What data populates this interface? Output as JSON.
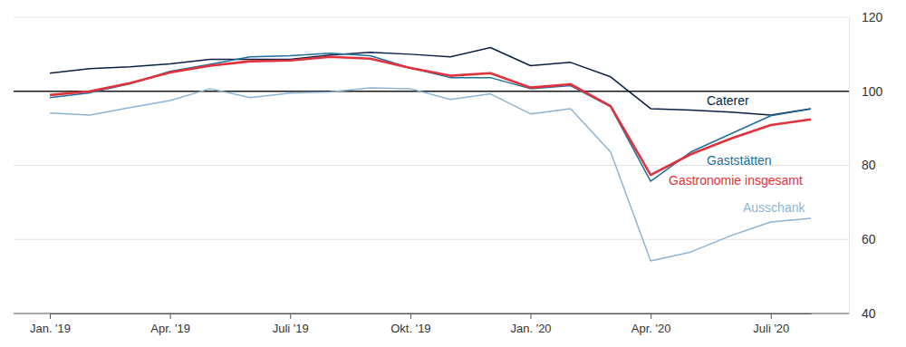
{
  "chart_data": {
    "type": "line",
    "categories": [
      "Jan. '19",
      null,
      null,
      "Apr. '19",
      null,
      null,
      "Juli '19",
      null,
      null,
      "Okt. '19",
      null,
      null,
      "Jan. '20",
      null,
      null,
      "Apr. '20",
      null,
      null,
      "Juli '20",
      null
    ],
    "series": [
      {
        "name": "Caterer",
        "color": "#0b1f45",
        "values": [
          104.9,
          106.1,
          106.6,
          107.4,
          108.6,
          108.6,
          108.6,
          109.8,
          110.5,
          110.0,
          109.3,
          111.8,
          106.9,
          107.8,
          103.9,
          95.3,
          94.9,
          94.4,
          93.6,
          95.3
        ]
      },
      {
        "name": "Gaststätten",
        "color": "#1f6f9a",
        "values": [
          98.3,
          99.6,
          102.0,
          105.4,
          107.3,
          109.3,
          109.6,
          110.3,
          109.6,
          106.3,
          103.7,
          103.7,
          100.7,
          101.5,
          95.8,
          75.7,
          83.6,
          88.5,
          93.4,
          95.2
        ]
      },
      {
        "name": "Gastronomie insgesamt",
        "color": "#e0323c",
        "values": [
          99.0,
          100.0,
          102.2,
          105.1,
          106.9,
          108.1,
          108.3,
          109.3,
          108.8,
          106.3,
          104.2,
          104.9,
          101.0,
          101.9,
          96.0,
          77.4,
          83.0,
          87.2,
          90.9,
          92.4
        ]
      },
      {
        "name": "Ausschank",
        "color": "#8db4d4",
        "values": [
          94.1,
          93.6,
          95.6,
          97.5,
          100.7,
          98.3,
          99.5,
          99.8,
          100.9,
          100.7,
          97.8,
          99.3,
          93.9,
          95.3,
          83.6,
          54.2,
          56.6,
          61.0,
          64.7,
          65.7
        ]
      }
    ],
    "reference": 100,
    "ylim": [
      40,
      120
    ],
    "yticks": [
      40,
      60,
      80,
      100,
      120
    ],
    "grid": true
  }
}
